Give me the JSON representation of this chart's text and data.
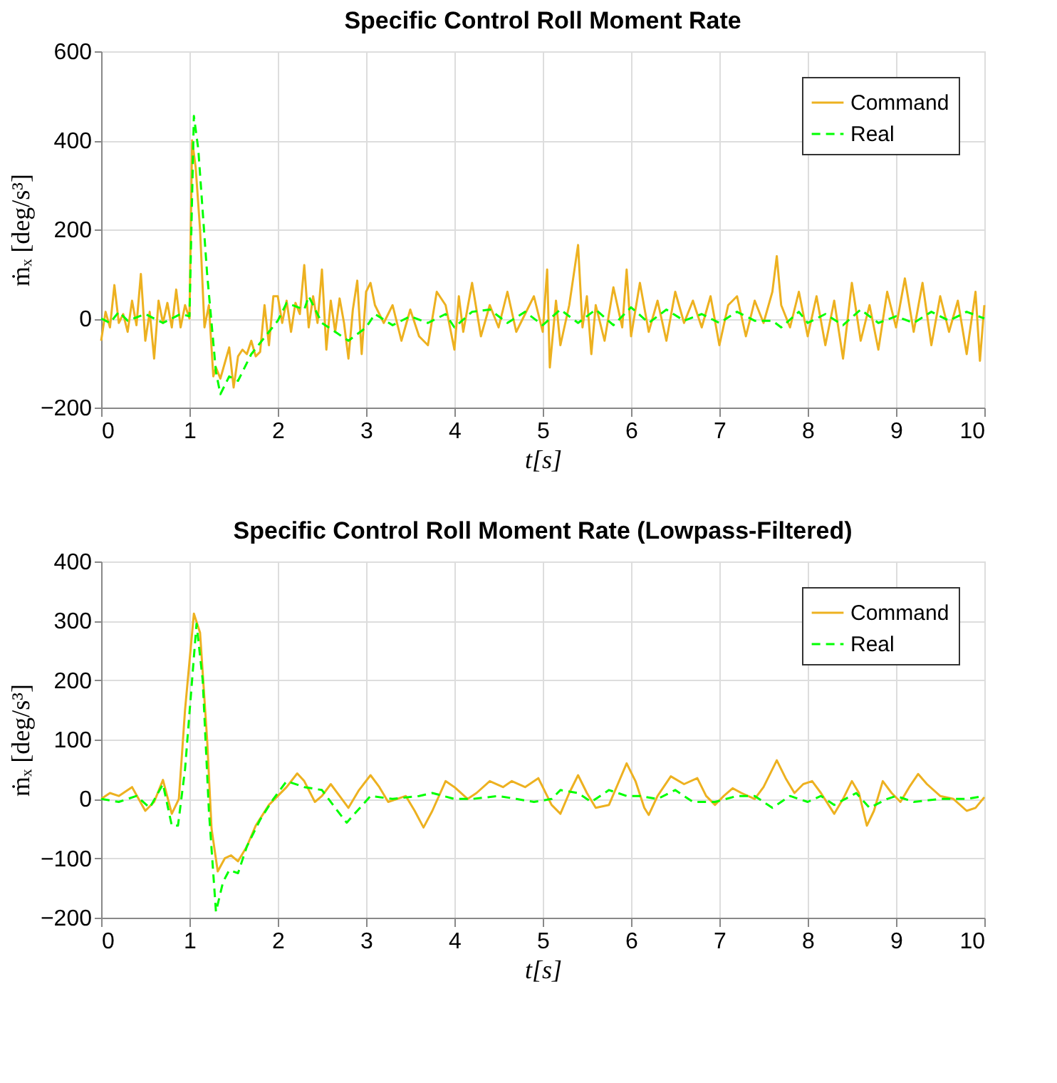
{
  "chart_data": [
    {
      "type": "line",
      "title": "Specific Control Roll Moment Rate",
      "xlabel": "t[s]",
      "ylabel": "ṁₓ [deg/s³]",
      "xlim": [
        0,
        10
      ],
      "xticks": [
        0,
        1,
        2,
        3,
        4,
        5,
        6,
        7,
        8,
        9,
        10
      ],
      "ylim": [
        -200,
        600
      ],
      "yticks": [
        -200,
        0,
        200,
        400,
        600
      ],
      "grid": true,
      "legend": "top right",
      "series": [
        {
          "name": "Command",
          "color": "#edb120",
          "line_style": "solid",
          "x": [
            0,
            0.05,
            0.1,
            0.15,
            0.2,
            0.25,
            0.3,
            0.35,
            0.4,
            0.45,
            0.5,
            0.55,
            0.6,
            0.65,
            0.7,
            0.75,
            0.8,
            0.85,
            0.9,
            0.95,
            1.0,
            1.03,
            1.07,
            1.12,
            1.17,
            1.22,
            1.27,
            1.3,
            1.35,
            1.4,
            1.45,
            1.5,
            1.55,
            1.6,
            1.65,
            1.7,
            1.75,
            1.8,
            1.85,
            1.9,
            1.95,
            2.0,
            2.05,
            2.1,
            2.15,
            2.2,
            2.25,
            2.3,
            2.35,
            2.4,
            2.45,
            2.5,
            2.55,
            2.6,
            2.65,
            2.7,
            2.75,
            2.8,
            2.85,
            2.9,
            2.95,
            3.0,
            3.05,
            3.1,
            3.2,
            3.3,
            3.4,
            3.5,
            3.6,
            3.7,
            3.8,
            3.9,
            4.0,
            4.05,
            4.1,
            4.2,
            4.3,
            4.4,
            4.5,
            4.6,
            4.7,
            4.8,
            4.9,
            5.0,
            5.05,
            5.08,
            5.15,
            5.2,
            5.3,
            5.4,
            5.45,
            5.5,
            5.55,
            5.6,
            5.7,
            5.8,
            5.9,
            5.95,
            6.0,
            6.1,
            6.2,
            6.3,
            6.4,
            6.5,
            6.6,
            6.7,
            6.8,
            6.9,
            7.0,
            7.1,
            7.2,
            7.3,
            7.4,
            7.5,
            7.6,
            7.65,
            7.7,
            7.8,
            7.9,
            8.0,
            8.1,
            8.2,
            8.3,
            8.4,
            8.5,
            8.6,
            8.7,
            8.8,
            8.9,
            9.0,
            9.1,
            9.2,
            9.3,
            9.4,
            9.5,
            9.6,
            9.7,
            9.8,
            9.9,
            9.95,
            10
          ],
          "values": [
            -50,
            15,
            -20,
            75,
            -10,
            10,
            -30,
            40,
            -15,
            100,
            -50,
            15,
            -90,
            40,
            -10,
            35,
            -20,
            65,
            -20,
            30,
            0,
            400,
            340,
            200,
            -20,
            30,
            -130,
            -110,
            -135,
            -100,
            -65,
            -155,
            -85,
            -70,
            -80,
            -50,
            -85,
            -75,
            30,
            -60,
            50,
            50,
            -10,
            40,
            -30,
            35,
            10,
            120,
            -20,
            50,
            -10,
            110,
            -70,
            40,
            -30,
            45,
            -10,
            -90,
            20,
            85,
            -80,
            60,
            80,
            30,
            -10,
            30,
            -50,
            20,
            -40,
            -60,
            60,
            30,
            -70,
            50,
            -30,
            80,
            -40,
            30,
            -20,
            60,
            -30,
            10,
            50,
            -30,
            110,
            -110,
            40,
            -60,
            30,
            165,
            -20,
            50,
            -80,
            30,
            -50,
            70,
            -20,
            110,
            -40,
            80,
            -30,
            40,
            -50,
            60,
            -10,
            40,
            -20,
            50,
            -60,
            30,
            50,
            -40,
            40,
            -10,
            60,
            140,
            30,
            -20,
            60,
            -40,
            50,
            -60,
            40,
            -90,
            80,
            -50,
            30,
            -70,
            60,
            -20,
            90,
            -30,
            80,
            -60,
            50,
            -30,
            40,
            -80,
            60,
            -95,
            30
          ]
        },
        {
          "name": "Real",
          "color": "#00ff00",
          "line_style": "dashed",
          "x": [
            0,
            0.1,
            0.2,
            0.3,
            0.5,
            0.7,
            0.9,
            1.0,
            1.05,
            1.1,
            1.2,
            1.3,
            1.35,
            1.45,
            1.55,
            1.7,
            1.9,
            2.0,
            2.1,
            2.3,
            2.35,
            2.5,
            2.8,
            3.0,
            3.1,
            3.3,
            3.5,
            3.7,
            3.9,
            4.0,
            4.2,
            4.4,
            4.6,
            4.8,
            5.0,
            5.2,
            5.4,
            5.6,
            5.8,
            6.0,
            6.2,
            6.4,
            6.6,
            6.8,
            7.0,
            7.2,
            7.4,
            7.6,
            7.7,
            7.9,
            8.0,
            8.2,
            8.4,
            8.6,
            8.8,
            9.0,
            9.2,
            9.4,
            9.6,
            9.8,
            10
          ],
          "values": [
            0,
            -10,
            15,
            -5,
            10,
            -10,
            10,
            5,
            455,
            380,
            100,
            -120,
            -170,
            -130,
            -140,
            -80,
            -30,
            -5,
            35,
            20,
            50,
            -10,
            -50,
            -20,
            10,
            -15,
            5,
            -10,
            10,
            -20,
            15,
            20,
            -10,
            15,
            -15,
            20,
            -10,
            20,
            -15,
            25,
            -10,
            20,
            -5,
            10,
            -10,
            15,
            -5,
            -5,
            -20,
            15,
            -10,
            10,
            -15,
            20,
            -10,
            5,
            -10,
            15,
            -5,
            15,
            0
          ]
        }
      ]
    },
    {
      "type": "line",
      "title": "Specific Control Roll Moment Rate (Lowpass-Filtered)",
      "xlabel": "t[s]",
      "ylabel": "ṁₓ [deg/s³]",
      "xlim": [
        0,
        10
      ],
      "xticks": [
        0,
        1,
        2,
        3,
        4,
        5,
        6,
        7,
        8,
        9,
        10
      ],
      "ylim": [
        -200,
        400
      ],
      "yticks": [
        -200,
        -100,
        0,
        100,
        200,
        300,
        400
      ],
      "grid": true,
      "legend": "top right",
      "series": [
        {
          "name": "Command",
          "color": "#edb120",
          "line_style": "solid",
          "x": [
            0,
            0.1,
            0.2,
            0.35,
            0.5,
            0.6,
            0.7,
            0.8,
            0.88,
            0.95,
            1.05,
            1.12,
            1.2,
            1.25,
            1.32,
            1.4,
            1.47,
            1.55,
            1.65,
            1.75,
            1.9,
            2.0,
            2.1,
            2.22,
            2.3,
            2.42,
            2.5,
            2.6,
            2.7,
            2.8,
            2.92,
            3.05,
            3.15,
            3.25,
            3.35,
            3.45,
            3.55,
            3.65,
            3.75,
            3.9,
            4.0,
            4.15,
            4.25,
            4.4,
            4.55,
            4.65,
            4.8,
            4.95,
            5.1,
            5.2,
            5.3,
            5.4,
            5.5,
            5.6,
            5.75,
            5.85,
            5.95,
            6.05,
            6.15,
            6.2,
            6.3,
            6.45,
            6.6,
            6.75,
            6.85,
            6.95,
            7.05,
            7.15,
            7.25,
            7.4,
            7.5,
            7.65,
            7.75,
            7.85,
            7.95,
            8.05,
            8.15,
            8.3,
            8.4,
            8.5,
            8.58,
            8.67,
            8.75,
            8.85,
            8.95,
            9.05,
            9.15,
            9.25,
            9.35,
            9.5,
            9.65,
            9.8,
            9.9,
            10
          ],
          "values": [
            0,
            10,
            5,
            20,
            -20,
            -5,
            32,
            -25,
            0,
            150,
            312,
            280,
            100,
            -50,
            -122,
            -100,
            -95,
            -105,
            -80,
            -45,
            -10,
            5,
            20,
            43,
            30,
            -5,
            5,
            25,
            5,
            -15,
            15,
            40,
            20,
            -5,
            0,
            5,
            -20,
            -48,
            -20,
            30,
            20,
            0,
            10,
            30,
            20,
            30,
            20,
            35,
            -10,
            -25,
            10,
            40,
            10,
            -15,
            -10,
            25,
            60,
            30,
            -15,
            -27,
            5,
            38,
            25,
            35,
            5,
            -10,
            5,
            18,
            10,
            0,
            20,
            65,
            35,
            10,
            25,
            30,
            10,
            -25,
            0,
            30,
            10,
            -45,
            -20,
            30,
            10,
            -5,
            20,
            42,
            25,
            5,
            0,
            -20,
            -15,
            3
          ]
        },
        {
          "name": "Real",
          "color": "#00ff00",
          "line_style": "dashed",
          "x": [
            0,
            0.2,
            0.4,
            0.55,
            0.7,
            0.8,
            0.87,
            0.95,
            1.08,
            1.15,
            1.22,
            1.3,
            1.38,
            1.45,
            1.55,
            1.65,
            1.8,
            1.95,
            2.1,
            2.3,
            2.5,
            2.65,
            2.78,
            2.9,
            3.05,
            3.3,
            3.6,
            3.75,
            4.0,
            4.2,
            4.5,
            4.7,
            4.9,
            5.1,
            5.2,
            5.4,
            5.55,
            5.75,
            5.95,
            6.1,
            6.3,
            6.5,
            6.7,
            6.95,
            7.2,
            7.4,
            7.6,
            7.8,
            8.0,
            8.15,
            8.3,
            8.55,
            8.7,
            8.9,
            9.0,
            9.2,
            9.5,
            9.8,
            10
          ],
          "values": [
            0,
            -5,
            5,
            -15,
            25,
            -45,
            -45,
            50,
            295,
            200,
            -20,
            -190,
            -140,
            -120,
            -125,
            -80,
            -35,
            0,
            30,
            20,
            15,
            -15,
            -40,
            -20,
            5,
            0,
            5,
            10,
            0,
            0,
            5,
            0,
            -5,
            0,
            15,
            10,
            -5,
            15,
            5,
            5,
            0,
            15,
            -5,
            -5,
            5,
            5,
            -15,
            5,
            -5,
            5,
            -10,
            10,
            -15,
            0,
            5,
            -5,
            0,
            0,
            5
          ]
        }
      ]
    }
  ]
}
